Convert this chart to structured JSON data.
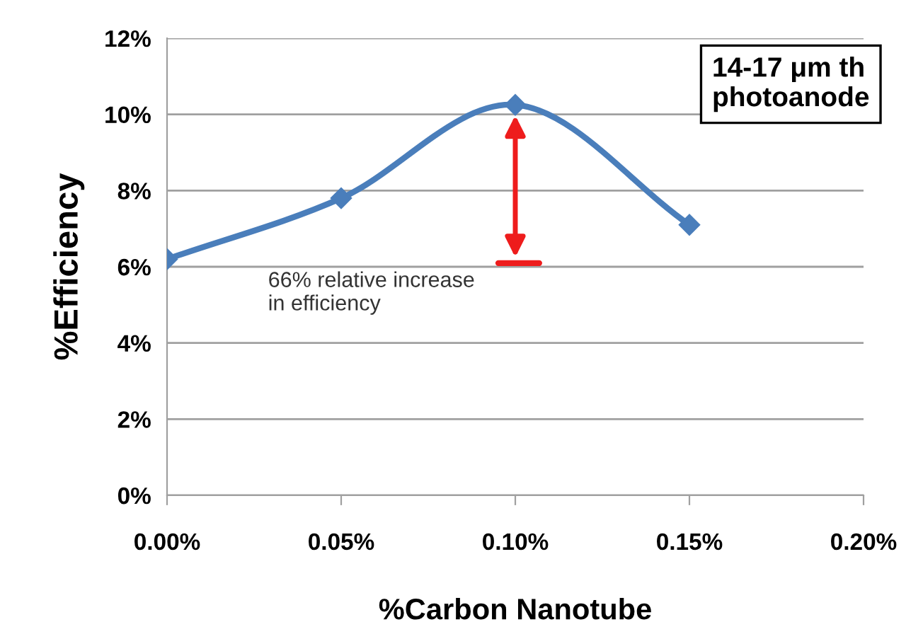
{
  "chart_data": {
    "type": "line",
    "xlabel": "%Carbon Nanotube",
    "ylabel": "%Efficiency",
    "x": [
      0,
      0.05,
      0.1,
      0.15
    ],
    "series": [
      {
        "color": "#4a7ebb",
        "values": [
          6.2,
          7.8,
          10.25,
          7.1
        ]
      }
    ],
    "xlim": [
      0,
      0.2
    ],
    "ylim": [
      0,
      12
    ],
    "xticks": [
      {
        "value": 0,
        "label": "0.00%"
      },
      {
        "value": 0.05,
        "label": "0.05%"
      },
      {
        "value": 0.1,
        "label": "0.10%"
      },
      {
        "value": 0.15,
        "label": "0.15%"
      },
      {
        "value": 0.2,
        "label": "0.20%"
      }
    ],
    "yticks": [
      {
        "value": 0,
        "label": "0%"
      },
      {
        "value": 2,
        "label": "2%"
      },
      {
        "value": 4,
        "label": "4%"
      },
      {
        "value": 6,
        "label": "6%"
      },
      {
        "value": 8,
        "label": "8%"
      },
      {
        "value": 10,
        "label": "10%"
      },
      {
        "value": 12,
        "label": "12%"
      }
    ],
    "grid": "y",
    "marker": "diamond",
    "line_style": "solid",
    "annotations": [
      "66% relative increase\nin efficiency",
      "14-17 μm th\nphotoanode"
    ]
  }
}
